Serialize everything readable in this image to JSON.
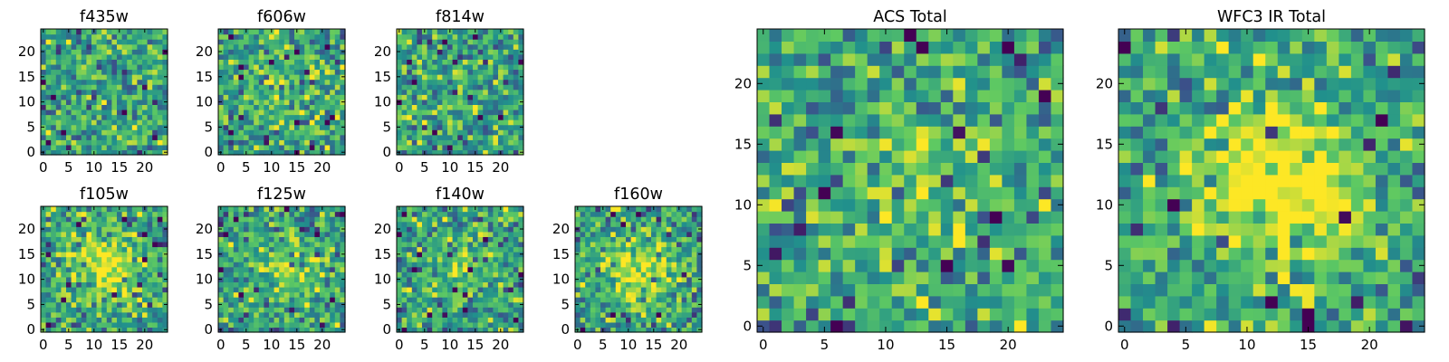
{
  "figure": {
    "description_free": true
  },
  "colormap": {
    "name": "viridis",
    "stops": [
      "#440154",
      "#3b528b",
      "#21918c",
      "#5ec962",
      "#fde725"
    ]
  },
  "chart_data": [
    {
      "id": "f435w",
      "type": "heatmap",
      "title": "f435w",
      "grid": 25,
      "x_ticks": [
        "0",
        "5",
        "10",
        "15",
        "20"
      ],
      "y_ticks": [
        "0",
        "5",
        "10",
        "15",
        "20"
      ],
      "xlim": [
        -0.5,
        24.5
      ],
      "ylim": [
        -0.5,
        24.5
      ],
      "description": "25x25 noisy pixel map, mostly green-yellow, no clear source",
      "central_source": 0.0,
      "seed": 11
    },
    {
      "id": "f606w",
      "type": "heatmap",
      "title": "f606w",
      "grid": 25,
      "x_ticks": [
        "0",
        "5",
        "10",
        "15",
        "20"
      ],
      "y_ticks": [
        "0",
        "5",
        "10",
        "15",
        "20"
      ],
      "xlim": [
        -0.5,
        24.5
      ],
      "ylim": [
        -0.5,
        24.5
      ],
      "description": "25x25 noisy pixel map, slightly brighter near center",
      "central_source": 0.15,
      "seed": 23
    },
    {
      "id": "f814w",
      "type": "heatmap",
      "title": "f814w",
      "grid": 25,
      "x_ticks": [
        "0",
        "5",
        "10",
        "15",
        "20"
      ],
      "y_ticks": [
        "0",
        "5",
        "10",
        "15",
        "20"
      ],
      "xlim": [
        -0.5,
        24.5
      ],
      "ylim": [
        -0.5,
        24.5
      ],
      "description": "25x25 noisy pixel map",
      "central_source": 0.05,
      "seed": 37
    },
    {
      "id": "f105w",
      "type": "heatmap",
      "title": "f105w",
      "grid": 25,
      "x_ticks": [
        "0",
        "5",
        "10",
        "15",
        "20"
      ],
      "y_ticks": [
        "0",
        "5",
        "10",
        "15",
        "20"
      ],
      "xlim": [
        -0.5,
        24.5
      ],
      "ylim": [
        -0.5,
        24.5
      ],
      "description": "25x25 map with bright central source near (13,13)",
      "central_source": 0.4,
      "seed": 41
    },
    {
      "id": "f125w",
      "type": "heatmap",
      "title": "f125w",
      "grid": 25,
      "x_ticks": [
        "0",
        "5",
        "10",
        "15",
        "20"
      ],
      "y_ticks": [
        "0",
        "5",
        "10",
        "15",
        "20"
      ],
      "xlim": [
        -0.5,
        24.5
      ],
      "ylim": [
        -0.5,
        24.5
      ],
      "description": "25x25 map, weak central source",
      "central_source": 0.2,
      "seed": 53
    },
    {
      "id": "f140w",
      "type": "heatmap",
      "title": "f140w",
      "grid": 25,
      "x_ticks": [
        "0",
        "5",
        "10",
        "15",
        "20"
      ],
      "y_ticks": [
        "0",
        "5",
        "10",
        "15",
        "20"
      ],
      "xlim": [
        -0.5,
        24.5
      ],
      "ylim": [
        -0.5,
        24.5
      ],
      "description": "25x25 map, faint central source",
      "central_source": 0.2,
      "seed": 67
    },
    {
      "id": "f160w",
      "type": "heatmap",
      "title": "f160w",
      "grid": 25,
      "x_ticks": [
        "0",
        "5",
        "10",
        "15",
        "20"
      ],
      "y_ticks": [
        "0",
        "5",
        "10",
        "15",
        "20"
      ],
      "xlim": [
        -0.5,
        24.5
      ],
      "ylim": [
        -0.5,
        24.5
      ],
      "description": "25x25 map with central source near (12,12)",
      "central_source": 0.35,
      "seed": 79
    },
    {
      "id": "acs-total",
      "type": "heatmap",
      "title": "ACS Total",
      "grid": 25,
      "x_ticks": [
        "0",
        "5",
        "10",
        "15",
        "20"
      ],
      "y_ticks": [
        "0",
        "5",
        "10",
        "15",
        "20"
      ],
      "xlim": [
        -0.5,
        24.5
      ],
      "ylim": [
        -0.5,
        24.5
      ],
      "description": "25x25 noisy map, mostly green-yellow with scattered dark pixels",
      "central_source": 0.15,
      "seed": 97
    },
    {
      "id": "wfc3-ir-total",
      "type": "heatmap",
      "title": "WFC3 IR Total",
      "grid": 25,
      "x_ticks": [
        "0",
        "5",
        "10",
        "15",
        "20"
      ],
      "y_ticks": [
        "0",
        "5",
        "10",
        "15",
        "20"
      ],
      "xlim": [
        -0.5,
        24.5
      ],
      "ylim": [
        -0.5,
        24.5
      ],
      "description": "25x25 map with bright yellow source centered near (13,12), dark blob near (22,8)",
      "central_source": 0.55,
      "seed": 113
    }
  ]
}
